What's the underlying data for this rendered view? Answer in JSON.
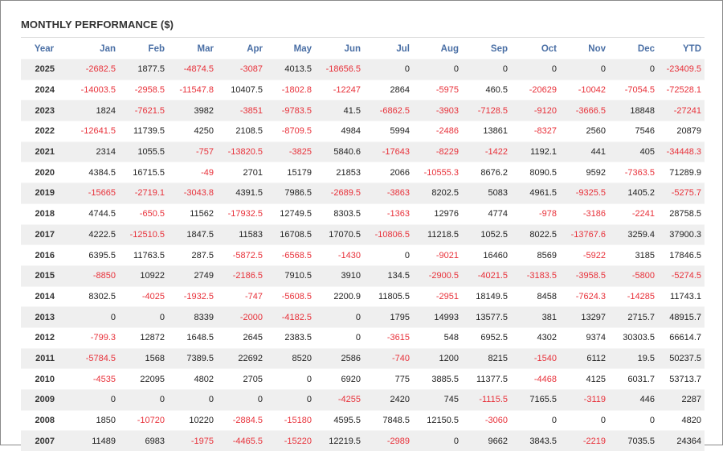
{
  "title": "MONTHLY PERFORMANCE ($)",
  "colors": {
    "negative": "#e8313a",
    "header": "#4a6fa5",
    "stripe": "#efefef"
  },
  "headers": [
    "Year",
    "Jan",
    "Feb",
    "Mar",
    "Apr",
    "May",
    "Jun",
    "Jul",
    "Aug",
    "Sep",
    "Oct",
    "Nov",
    "Dec",
    "YTD"
  ],
  "rows": [
    [
      "2025",
      "-2682.5",
      "1877.5",
      "-4874.5",
      "-3087",
      "4013.5",
      "-18656.5",
      "0",
      "0",
      "0",
      "0",
      "0",
      "0",
      "-23409.5"
    ],
    [
      "2024",
      "-14003.5",
      "-2958.5",
      "-11547.8",
      "10407.5",
      "-1802.8",
      "-12247",
      "2864",
      "-5975",
      "460.5",
      "-20629",
      "-10042",
      "-7054.5",
      "-72528.1"
    ],
    [
      "2023",
      "1824",
      "-7621.5",
      "3982",
      "-3851",
      "-9783.5",
      "41.5",
      "-6862.5",
      "-3903",
      "-7128.5",
      "-9120",
      "-3666.5",
      "18848",
      "-27241"
    ],
    [
      "2022",
      "-12641.5",
      "11739.5",
      "4250",
      "2108.5",
      "-8709.5",
      "4984",
      "5994",
      "-2486",
      "13861",
      "-8327",
      "2560",
      "7546",
      "20879"
    ],
    [
      "2021",
      "2314",
      "1055.5",
      "-757",
      "-13820.5",
      "-3825",
      "5840.6",
      "-17643",
      "-8229",
      "-1422",
      "1192.1",
      "441",
      "405",
      "-34448.3"
    ],
    [
      "2020",
      "4384.5",
      "16715.5",
      "-49",
      "2701",
      "15179",
      "21853",
      "2066",
      "-10555.3",
      "8676.2",
      "8090.5",
      "9592",
      "-7363.5",
      "71289.9"
    ],
    [
      "2019",
      "-15665",
      "-2719.1",
      "-3043.8",
      "4391.5",
      "7986.5",
      "-2689.5",
      "-3863",
      "8202.5",
      "5083",
      "4961.5",
      "-9325.5",
      "1405.2",
      "-5275.7"
    ],
    [
      "2018",
      "4744.5",
      "-650.5",
      "11562",
      "-17932.5",
      "12749.5",
      "8303.5",
      "-1363",
      "12976",
      "4774",
      "-978",
      "-3186",
      "-2241",
      "28758.5"
    ],
    [
      "2017",
      "4222.5",
      "-12510.5",
      "1847.5",
      "11583",
      "16708.5",
      "17070.5",
      "-10806.5",
      "11218.5",
      "1052.5",
      "8022.5",
      "-13767.6",
      "3259.4",
      "37900.3"
    ],
    [
      "2016",
      "6395.5",
      "11763.5",
      "287.5",
      "-5872.5",
      "-6568.5",
      "-1430",
      "0",
      "-9021",
      "16460",
      "8569",
      "-5922",
      "3185",
      "17846.5"
    ],
    [
      "2015",
      "-8850",
      "10922",
      "2749",
      "-2186.5",
      "7910.5",
      "3910",
      "134.5",
      "-2900.5",
      "-4021.5",
      "-3183.5",
      "-3958.5",
      "-5800",
      "-5274.5"
    ],
    [
      "2014",
      "8302.5",
      "-4025",
      "-1932.5",
      "-747",
      "-5608.5",
      "2200.9",
      "11805.5",
      "-2951",
      "18149.5",
      "8458",
      "-7624.3",
      "-14285",
      "11743.1"
    ],
    [
      "2013",
      "0",
      "0",
      "8339",
      "-2000",
      "-4182.5",
      "0",
      "1795",
      "14993",
      "13577.5",
      "381",
      "13297",
      "2715.7",
      "48915.7"
    ],
    [
      "2012",
      "-799.3",
      "12872",
      "1648.5",
      "2645",
      "2383.5",
      "0",
      "-3615",
      "548",
      "6952.5",
      "4302",
      "9374",
      "30303.5",
      "66614.7"
    ],
    [
      "2011",
      "-5784.5",
      "1568",
      "7389.5",
      "22692",
      "8520",
      "2586",
      "-740",
      "1200",
      "8215",
      "-1540",
      "6112",
      "19.5",
      "50237.5"
    ],
    [
      "2010",
      "-4535",
      "22095",
      "4802",
      "2705",
      "0",
      "6920",
      "775",
      "3885.5",
      "11377.5",
      "-4468",
      "4125",
      "6031.7",
      "53713.7"
    ],
    [
      "2009",
      "0",
      "0",
      "0",
      "0",
      "0",
      "-4255",
      "2420",
      "745",
      "-1115.5",
      "7165.5",
      "-3119",
      "446",
      "2287"
    ],
    [
      "2008",
      "1850",
      "-10720",
      "10220",
      "-2884.5",
      "-15180",
      "4595.5",
      "7848.5",
      "12150.5",
      "-3060",
      "0",
      "0",
      "0",
      "4820"
    ],
    [
      "2007",
      "11489",
      "6983",
      "-1975",
      "-4465.5",
      "-15220",
      "12219.5",
      "-2989",
      "0",
      "9662",
      "3843.5",
      "-2219",
      "7035.5",
      "24364"
    ]
  ]
}
